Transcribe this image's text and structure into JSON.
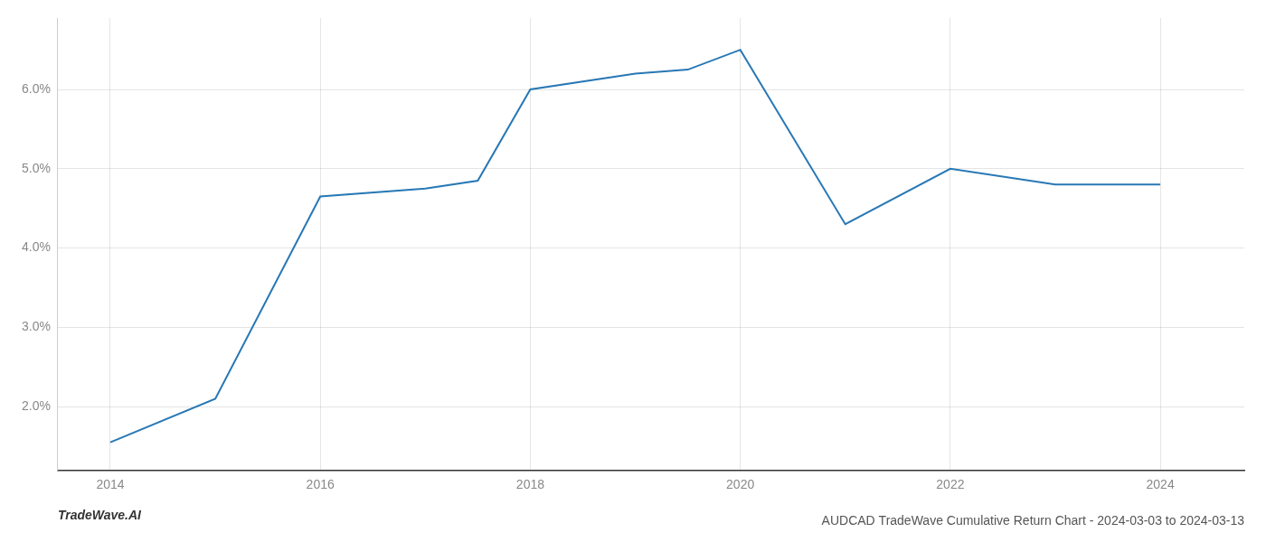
{
  "chart_data": {
    "type": "line",
    "title": "AUDCAD TradeWave Cumulative Return Chart - 2024-03-03 to 2024-03-13",
    "annotations": [
      "TradeWave.AI"
    ],
    "x": [
      2014,
      2015,
      2016,
      2017,
      2017.5,
      2018,
      2019,
      2019.5,
      2020,
      2021,
      2022,
      2023,
      2024
    ],
    "values": [
      1.55,
      2.1,
      4.65,
      4.75,
      4.85,
      6.0,
      6.2,
      6.25,
      6.5,
      4.3,
      5.0,
      4.8,
      4.8
    ],
    "color": "#2878b5",
    "xlim": [
      2013.5,
      2024.8
    ],
    "ylim": [
      1.2,
      6.9
    ],
    "xticks": [
      2014,
      2016,
      2018,
      2020,
      2022,
      2024
    ],
    "yticks": [
      {
        "value": 2.0,
        "label": "2.0%"
      },
      {
        "value": 3.0,
        "label": "3.0%"
      },
      {
        "value": 4.0,
        "label": "4.0%"
      },
      {
        "value": 5.0,
        "label": "5.0%"
      },
      {
        "value": 6.0,
        "label": "6.0%"
      }
    ],
    "grid": true
  }
}
